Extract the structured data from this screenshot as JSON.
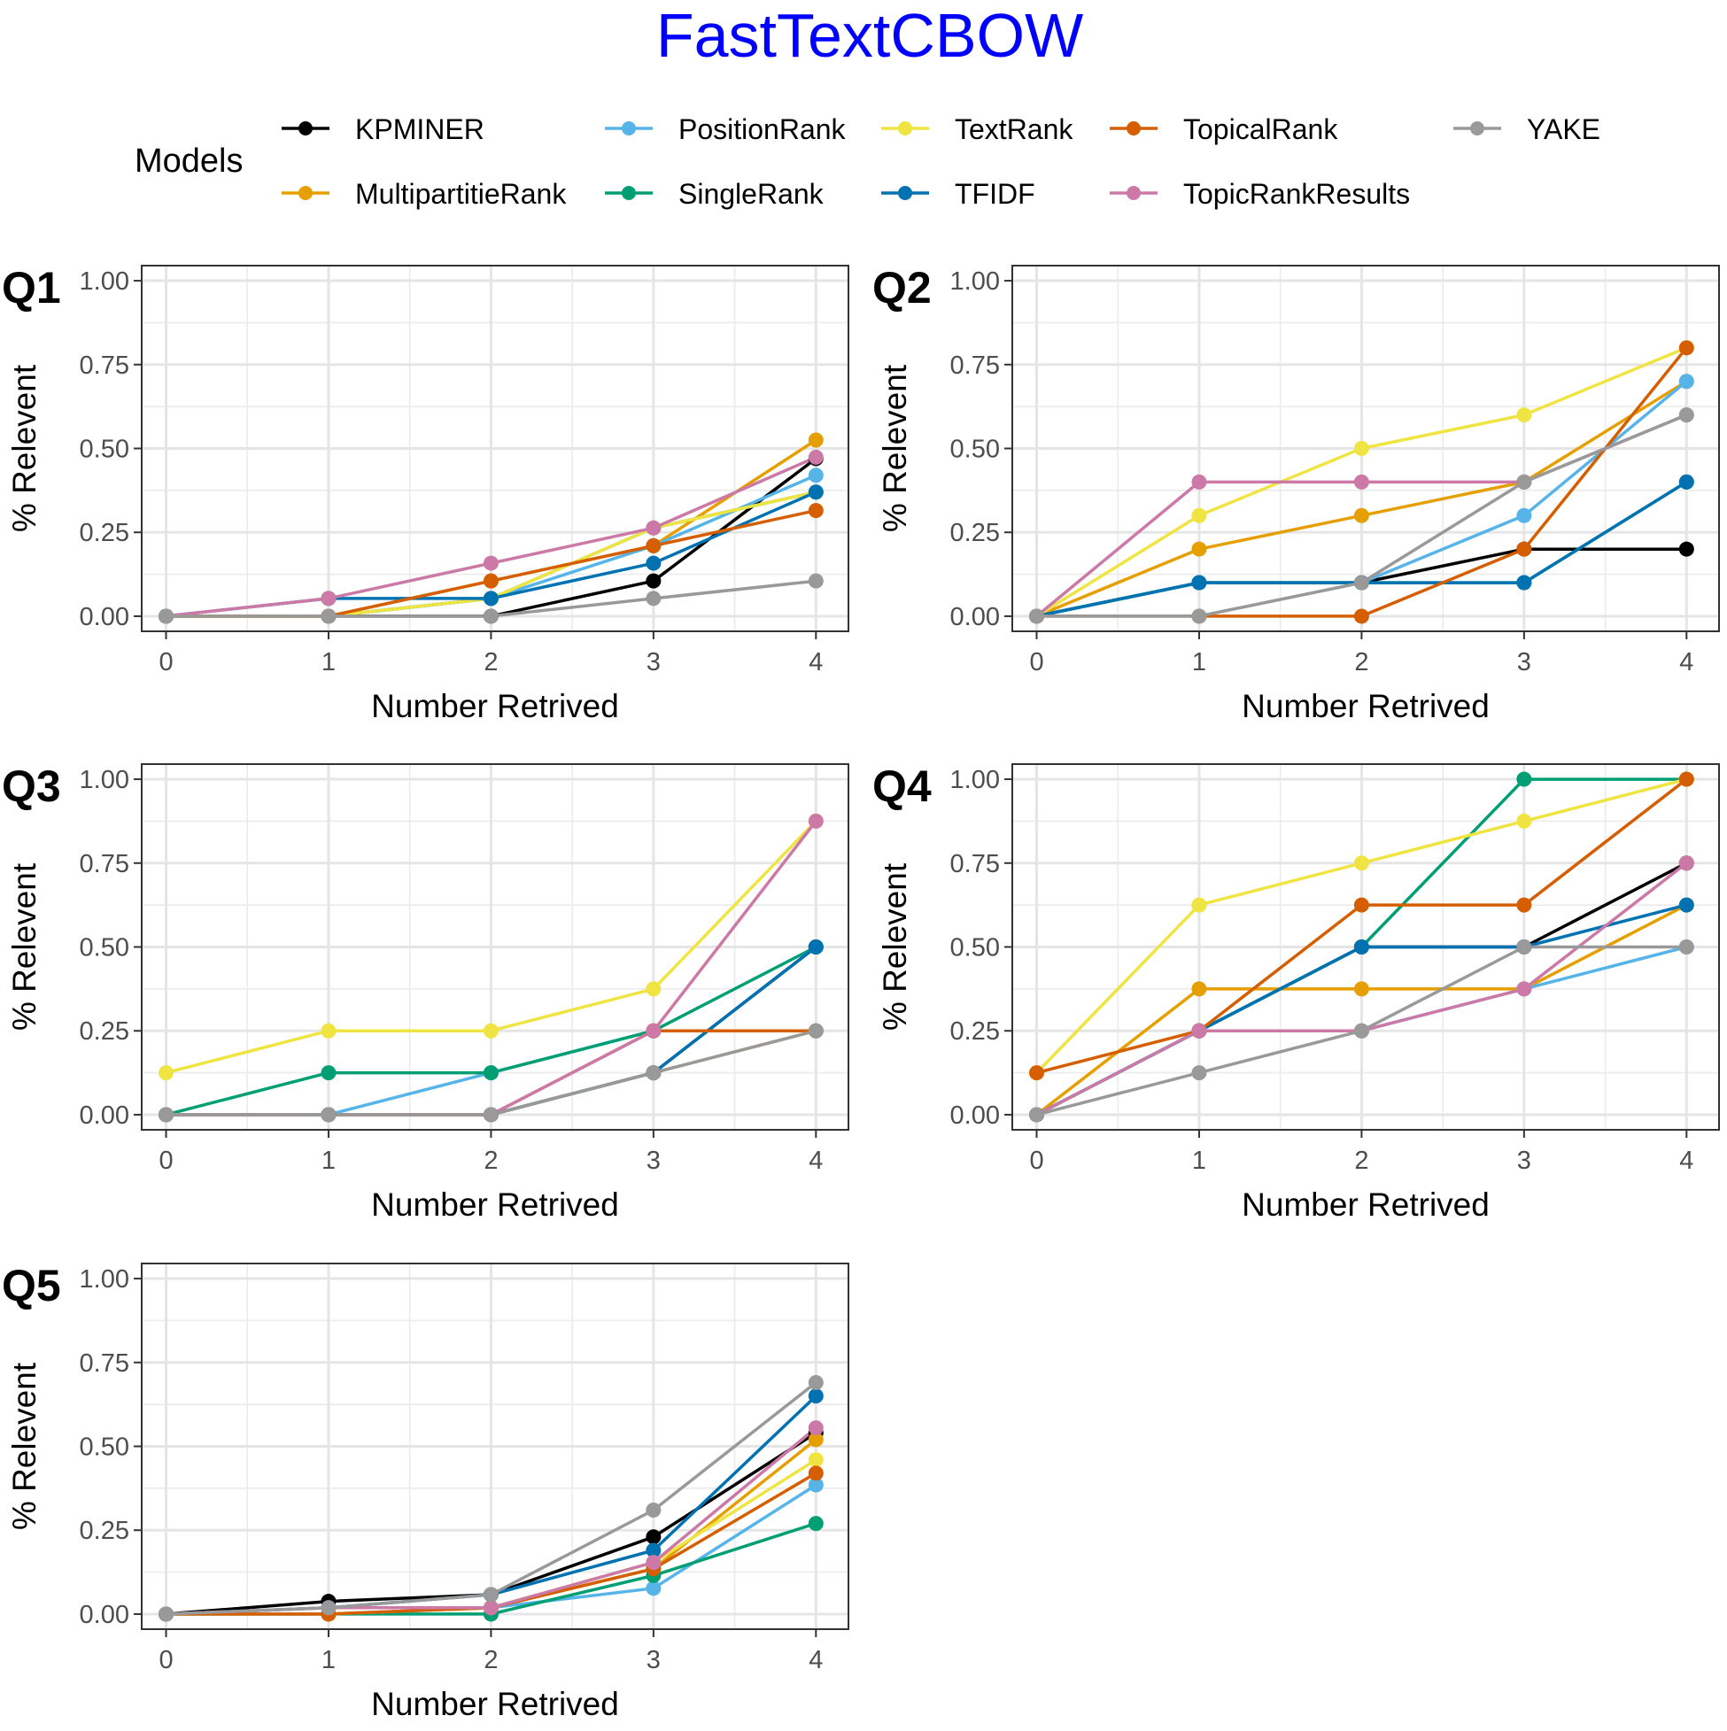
{
  "title": "FastTextCBOW",
  "legend": {
    "title": "Models",
    "placement": "top",
    "rows": [
      [
        "KPMINER",
        "PositionRank",
        "TextRank",
        "TopicalRank",
        "YAKE"
      ],
      [
        "MultipartitieRank",
        "SingleRank",
        "TFIDF",
        "TopicRankResults"
      ]
    ]
  },
  "colors": {
    "KPMINER": "#000000",
    "MultipartitieRank": "#E69F00",
    "PositionRank": "#56B4E9",
    "SingleRank": "#009E73",
    "TextRank": "#F0E442",
    "TFIDF": "#0072B2",
    "TopicalRank": "#D55E00",
    "TopicRankResults": "#CC79A7",
    "YAKE": "#999999",
    "title": "#0000FF"
  },
  "chart_data": [
    {
      "type": "line",
      "panel": "Q1",
      "xlabel": "Number Retrived",
      "ylabel": "% Relevent",
      "x": [
        0,
        1,
        2,
        3,
        4
      ],
      "xlim": [
        -0.15,
        4.2
      ],
      "ylim": [
        -0.045,
        1.045
      ],
      "xticks": [
        "0",
        "1",
        "2",
        "3",
        "4"
      ],
      "yticks": [
        "0.00",
        "0.25",
        "0.50",
        "0.75",
        "1.00"
      ],
      "grid": true,
      "series": [
        {
          "name": "KPMINER",
          "values": [
            0,
            0,
            0,
            0.105,
            0.47
          ]
        },
        {
          "name": "MultipartitieRank",
          "values": [
            0,
            0,
            0.105,
            0.21,
            0.525
          ]
        },
        {
          "name": "PositionRank",
          "values": [
            0,
            0,
            0.053,
            0.21,
            0.42
          ]
        },
        {
          "name": "SingleRank",
          "values": [
            0,
            0,
            0.053,
            0.263,
            0.37
          ]
        },
        {
          "name": "TextRank",
          "values": [
            0,
            0,
            0.053,
            0.263,
            0.37
          ]
        },
        {
          "name": "TFIDF",
          "values": [
            0,
            0.053,
            0.053,
            0.158,
            0.37
          ]
        },
        {
          "name": "TopicalRank",
          "values": [
            0,
            0,
            0.105,
            0.21,
            0.315
          ]
        },
        {
          "name": "TopicRankResults",
          "values": [
            0,
            0.053,
            0.158,
            0.263,
            0.474
          ]
        },
        {
          "name": "YAKE",
          "values": [
            0,
            0,
            0,
            0.053,
            0.105
          ]
        }
      ]
    },
    {
      "type": "line",
      "panel": "Q2",
      "xlabel": "Number Retrived",
      "ylabel": "% Relevent",
      "x": [
        0,
        1,
        2,
        3,
        4
      ],
      "xlim": [
        -0.15,
        4.2
      ],
      "ylim": [
        -0.045,
        1.045
      ],
      "xticks": [
        "0",
        "1",
        "2",
        "3",
        "4"
      ],
      "yticks": [
        "0.00",
        "0.25",
        "0.50",
        "0.75",
        "1.00"
      ],
      "grid": true,
      "series": [
        {
          "name": "KPMINER",
          "values": [
            0,
            0.1,
            0.1,
            0.2,
            0.2
          ]
        },
        {
          "name": "MultipartitieRank",
          "values": [
            0,
            0.2,
            0.3,
            0.4,
            0.7
          ]
        },
        {
          "name": "PositionRank",
          "values": [
            0,
            0.1,
            0.1,
            0.3,
            0.7
          ]
        },
        {
          "name": "SingleRank",
          "values": [
            0,
            0.1,
            0.1,
            0.1,
            0.4
          ]
        },
        {
          "name": "TextRank",
          "values": [
            0,
            0.3,
            0.5,
            0.6,
            0.8
          ]
        },
        {
          "name": "TFIDF",
          "values": [
            0,
            0.1,
            0.1,
            0.1,
            0.4
          ]
        },
        {
          "name": "TopicalRank",
          "values": [
            0,
            0,
            0,
            0.2,
            0.8
          ]
        },
        {
          "name": "TopicRankResults",
          "values": [
            0,
            0.4,
            0.4,
            0.4,
            0.6
          ]
        },
        {
          "name": "YAKE",
          "values": [
            0,
            0,
            0.1,
            0.4,
            0.6
          ]
        }
      ]
    },
    {
      "type": "line",
      "panel": "Q3",
      "xlabel": "Number Retrived",
      "ylabel": "% Relevent",
      "x": [
        0,
        1,
        2,
        3,
        4
      ],
      "xlim": [
        -0.15,
        4.2
      ],
      "ylim": [
        -0.045,
        1.045
      ],
      "xticks": [
        "0",
        "1",
        "2",
        "3",
        "4"
      ],
      "yticks": [
        "0.00",
        "0.25",
        "0.50",
        "0.75",
        "1.00"
      ],
      "grid": true,
      "series": [
        {
          "name": "KPMINER",
          "values": [
            0,
            0,
            0,
            0.125,
            0.5
          ]
        },
        {
          "name": "MultipartitieRank",
          "values": [
            0,
            0,
            0,
            0.125,
            0.25
          ]
        },
        {
          "name": "PositionRank",
          "values": [
            0,
            0,
            0.125,
            0.25,
            0.25
          ]
        },
        {
          "name": "SingleRank",
          "values": [
            0,
            0.125,
            0.125,
            0.25,
            0.5
          ]
        },
        {
          "name": "TextRank",
          "values": [
            0.125,
            0.25,
            0.25,
            0.375,
            0.875
          ]
        },
        {
          "name": "TFIDF",
          "values": [
            0,
            0,
            0,
            0.125,
            0.5
          ]
        },
        {
          "name": "TopicalRank",
          "values": [
            0,
            0,
            0,
            0.25,
            0.25
          ]
        },
        {
          "name": "TopicRankResults",
          "values": [
            0,
            0,
            0,
            0.25,
            0.875
          ]
        },
        {
          "name": "YAKE",
          "values": [
            0,
            0,
            0,
            0.125,
            0.25
          ]
        }
      ]
    },
    {
      "type": "line",
      "panel": "Q4",
      "xlabel": "Number Retrived",
      "ylabel": "% Relevent",
      "x": [
        0,
        1,
        2,
        3,
        4
      ],
      "xlim": [
        -0.15,
        4.2
      ],
      "ylim": [
        -0.045,
        1.045
      ],
      "xticks": [
        "0",
        "1",
        "2",
        "3",
        "4"
      ],
      "yticks": [
        "0.00",
        "0.25",
        "0.50",
        "0.75",
        "1.00"
      ],
      "grid": true,
      "series": [
        {
          "name": "KPMINER",
          "values": [
            0,
            0.25,
            0.5,
            0.5,
            0.75
          ]
        },
        {
          "name": "MultipartitieRank",
          "values": [
            0,
            0.375,
            0.375,
            0.375,
            0.625
          ]
        },
        {
          "name": "PositionRank",
          "values": [
            0,
            0.25,
            0.25,
            0.375,
            0.5
          ]
        },
        {
          "name": "SingleRank",
          "values": [
            0,
            0.25,
            0.5,
            1.0,
            1.0
          ]
        },
        {
          "name": "TextRank",
          "values": [
            0.125,
            0.625,
            0.75,
            0.875,
            1.0
          ]
        },
        {
          "name": "TFIDF",
          "values": [
            0,
            0.25,
            0.5,
            0.5,
            0.625
          ]
        },
        {
          "name": "TopicalRank",
          "values": [
            0.125,
            0.25,
            0.625,
            0.625,
            1.0
          ]
        },
        {
          "name": "TopicRankResults",
          "values": [
            0,
            0.25,
            0.25,
            0.375,
            0.75
          ]
        },
        {
          "name": "YAKE",
          "values": [
            0,
            0.125,
            0.25,
            0.5,
            0.5
          ]
        }
      ]
    },
    {
      "type": "line",
      "panel": "Q5",
      "xlabel": "Number Retrived",
      "ylabel": "% Relevent",
      "x": [
        0,
        1,
        2,
        3,
        4
      ],
      "xlim": [
        -0.15,
        4.2
      ],
      "ylim": [
        -0.045,
        1.045
      ],
      "xticks": [
        "0",
        "1",
        "2",
        "3",
        "4"
      ],
      "yticks": [
        "0.00",
        "0.25",
        "0.50",
        "0.75",
        "1.00"
      ],
      "grid": true,
      "series": [
        {
          "name": "KPMINER",
          "values": [
            0,
            0.038,
            0.058,
            0.23,
            0.54
          ]
        },
        {
          "name": "MultipartitieRank",
          "values": [
            0,
            0,
            0.019,
            0.135,
            0.52
          ]
        },
        {
          "name": "PositionRank",
          "values": [
            0,
            0,
            0.019,
            0.077,
            0.385
          ]
        },
        {
          "name": "SingleRank",
          "values": [
            0,
            0,
            0,
            0.115,
            0.27
          ]
        },
        {
          "name": "TextRank",
          "values": [
            0,
            0,
            0.019,
            0.154,
            0.46
          ]
        },
        {
          "name": "TFIDF",
          "values": [
            0,
            0.019,
            0.058,
            0.19,
            0.65
          ]
        },
        {
          "name": "TopicalRank",
          "values": [
            0,
            0,
            0.019,
            0.135,
            0.42
          ]
        },
        {
          "name": "TopicRankResults",
          "values": [
            0,
            0.019,
            0.019,
            0.154,
            0.555
          ]
        },
        {
          "name": "YAKE",
          "values": [
            0,
            0.019,
            0.058,
            0.31,
            0.69
          ]
        }
      ]
    }
  ]
}
